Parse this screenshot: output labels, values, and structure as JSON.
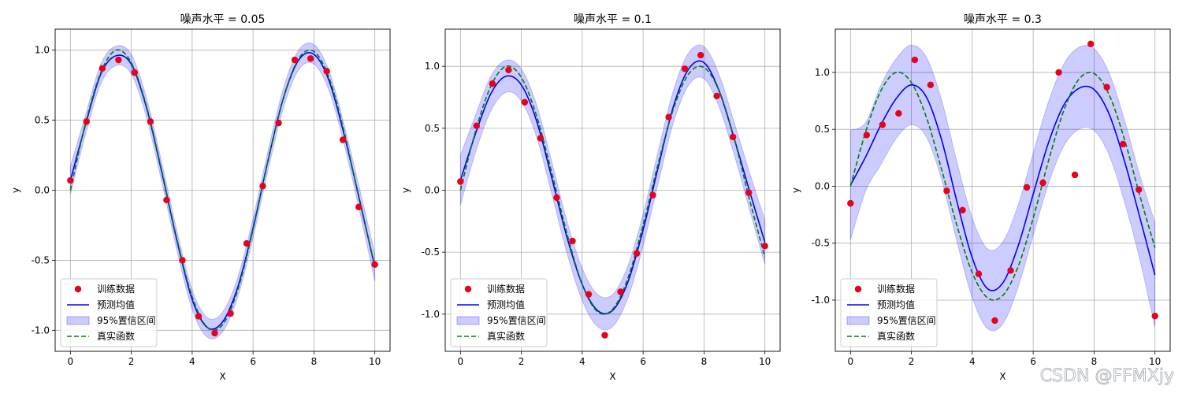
{
  "watermark": "CSDN @FFMXjy",
  "chart_data": [
    {
      "type": "line",
      "title": "噪声水平 = 0.05",
      "xlabel": "X",
      "ylabel": "y",
      "xlim": [
        -0.5,
        10.5
      ],
      "ylim": [
        -1.15,
        1.15
      ],
      "xticks": [
        0,
        2,
        4,
        6,
        8,
        10
      ],
      "xtick_labels": [
        "0",
        "2",
        "4",
        "6",
        "8",
        "10"
      ],
      "yticks": [
        -1.0,
        -0.5,
        0.0,
        0.5,
        1.0
      ],
      "ytick_labels": [
        "-1.0",
        "-0.5",
        "0.0",
        "0.5",
        "1.0"
      ],
      "grid": true,
      "legend_position": "lower-left",
      "legend": [
        "训练数据",
        "预测均值",
        "95%置信区间",
        "真实函数"
      ],
      "colors": {
        "points": "#e8001c",
        "mean": "#0000ff",
        "band": "#0000ff",
        "truth": "#008000"
      },
      "series": [
        {
          "name": "训练数据",
          "kind": "points",
          "x": [
            0.0,
            0.53,
            1.05,
            1.58,
            2.11,
            2.63,
            3.16,
            3.68,
            4.21,
            4.74,
            5.26,
            5.79,
            6.32,
            6.84,
            7.37,
            7.89,
            8.42,
            8.95,
            9.47,
            10.0
          ],
          "y": [
            0.07,
            0.49,
            0.87,
            0.93,
            0.84,
            0.49,
            -0.07,
            -0.5,
            -0.9,
            -1.02,
            -0.88,
            -0.38,
            0.03,
            0.48,
            0.93,
            0.94,
            0.85,
            0.36,
            -0.12,
            -0.53
          ]
        },
        {
          "name": "预测均值",
          "kind": "line",
          "x": [
            0.0,
            0.5,
            1.0,
            1.5,
            2.0,
            2.5,
            3.0,
            3.5,
            4.0,
            4.5,
            5.0,
            5.5,
            6.0,
            6.5,
            7.0,
            7.5,
            8.0,
            8.5,
            9.0,
            9.5,
            10.0
          ],
          "y": [
            0.07,
            0.47,
            0.83,
            0.96,
            0.9,
            0.59,
            0.13,
            -0.36,
            -0.78,
            -0.98,
            -0.94,
            -0.69,
            -0.27,
            0.22,
            0.66,
            0.93,
            0.97,
            0.78,
            0.39,
            -0.07,
            -0.55
          ]
        },
        {
          "name": "95%置信区间",
          "kind": "band",
          "x": [
            0.0,
            0.5,
            1.0,
            1.5,
            2.0,
            2.5,
            3.0,
            3.5,
            4.0,
            4.5,
            5.0,
            5.5,
            6.0,
            6.5,
            7.0,
            7.5,
            8.0,
            8.5,
            9.0,
            9.5,
            10.0
          ],
          "lower": [
            -0.03,
            0.4,
            0.76,
            0.89,
            0.83,
            0.52,
            0.06,
            -0.43,
            -0.85,
            -1.05,
            -1.01,
            -0.76,
            -0.34,
            0.15,
            0.59,
            0.86,
            0.9,
            0.71,
            0.32,
            -0.15,
            -0.65
          ],
          "upper": [
            0.17,
            0.54,
            0.9,
            1.03,
            0.97,
            0.66,
            0.2,
            -0.29,
            -0.71,
            -0.91,
            -0.87,
            -0.62,
            -0.2,
            0.29,
            0.73,
            1.0,
            1.04,
            0.85,
            0.46,
            0.01,
            -0.45
          ]
        },
        {
          "name": "真实函数",
          "kind": "dashed",
          "x": [
            0.0,
            0.5,
            1.0,
            1.5,
            2.0,
            2.5,
            3.0,
            3.5,
            4.0,
            4.5,
            5.0,
            5.5,
            6.0,
            6.5,
            7.0,
            7.5,
            8.0,
            8.5,
            9.0,
            9.5,
            10.0
          ],
          "y": [
            0.0,
            0.48,
            0.84,
            1.0,
            0.91,
            0.6,
            0.14,
            -0.35,
            -0.76,
            -0.98,
            -0.96,
            -0.71,
            -0.28,
            0.22,
            0.66,
            0.94,
            0.99,
            0.8,
            0.41,
            -0.08,
            -0.54
          ]
        }
      ]
    },
    {
      "type": "line",
      "title": "噪声水平 = 0.1",
      "xlabel": "X",
      "ylabel": "y",
      "xlim": [
        -0.5,
        10.5
      ],
      "ylim": [
        -1.3,
        1.3
      ],
      "xticks": [
        0,
        2,
        4,
        6,
        8,
        10
      ],
      "xtick_labels": [
        "0",
        "2",
        "4",
        "6",
        "8",
        "10"
      ],
      "yticks": [
        -1.0,
        -0.5,
        0.0,
        0.5,
        1.0
      ],
      "ytick_labels": [
        "-1.0",
        "-0.5",
        "0.0",
        "0.5",
        "1.0"
      ],
      "grid": true,
      "legend_position": "lower-left",
      "legend": [
        "训练数据",
        "预测均值",
        "95%置信区间",
        "真实函数"
      ],
      "colors": {
        "points": "#e8001c",
        "mean": "#0000ff",
        "band": "#0000ff",
        "truth": "#008000"
      },
      "series": [
        {
          "name": "训练数据",
          "kind": "points",
          "x": [
            0.0,
            0.53,
            1.05,
            1.58,
            2.11,
            2.63,
            3.16,
            3.68,
            4.21,
            4.74,
            5.26,
            5.79,
            6.32,
            6.84,
            7.37,
            7.89,
            8.42,
            8.95,
            9.47,
            10.0
          ],
          "y": [
            0.07,
            0.52,
            0.86,
            0.97,
            0.71,
            0.42,
            -0.06,
            -0.41,
            -0.84,
            -1.17,
            -0.82,
            -0.51,
            -0.04,
            0.59,
            0.98,
            1.09,
            0.76,
            0.43,
            -0.02,
            -0.45
          ]
        },
        {
          "name": "预测均值",
          "kind": "line",
          "x": [
            0.0,
            0.5,
            1.0,
            1.5,
            2.0,
            2.5,
            3.0,
            3.5,
            4.0,
            4.5,
            5.0,
            5.5,
            6.0,
            6.5,
            7.0,
            7.5,
            8.0,
            8.5,
            9.0,
            9.5,
            10.0
          ],
          "y": [
            0.08,
            0.46,
            0.78,
            0.92,
            0.85,
            0.56,
            0.1,
            -0.38,
            -0.76,
            -0.97,
            -0.97,
            -0.74,
            -0.32,
            0.19,
            0.68,
            0.98,
            1.03,
            0.8,
            0.41,
            -0.01,
            -0.42
          ]
        },
        {
          "name": "95%置信区间",
          "kind": "band",
          "x": [
            0.0,
            0.5,
            1.0,
            1.5,
            2.0,
            2.5,
            3.0,
            3.5,
            4.0,
            4.5,
            5.0,
            5.5,
            6.0,
            6.5,
            7.0,
            7.5,
            8.0,
            8.5,
            9.0,
            9.5,
            10.0
          ],
          "lower": [
            -0.12,
            0.31,
            0.64,
            0.79,
            0.72,
            0.43,
            -0.03,
            -0.51,
            -0.89,
            -1.1,
            -1.1,
            -0.87,
            -0.45,
            0.06,
            0.55,
            0.85,
            0.9,
            0.67,
            0.28,
            -0.16,
            -0.6
          ],
          "upper": [
            0.28,
            0.61,
            0.92,
            1.05,
            0.98,
            0.69,
            0.23,
            -0.25,
            -0.63,
            -0.84,
            -0.84,
            -0.61,
            -0.19,
            0.32,
            0.81,
            1.11,
            1.16,
            0.93,
            0.54,
            0.14,
            -0.24
          ]
        },
        {
          "name": "真实函数",
          "kind": "dashed",
          "x": [
            0.0,
            0.5,
            1.0,
            1.5,
            2.0,
            2.5,
            3.0,
            3.5,
            4.0,
            4.5,
            5.0,
            5.5,
            6.0,
            6.5,
            7.0,
            7.5,
            8.0,
            8.5,
            9.0,
            9.5,
            10.0
          ],
          "y": [
            0.0,
            0.48,
            0.84,
            1.0,
            0.91,
            0.6,
            0.14,
            -0.35,
            -0.76,
            -0.98,
            -0.96,
            -0.71,
            -0.28,
            0.22,
            0.66,
            0.94,
            0.99,
            0.8,
            0.41,
            -0.08,
            -0.54
          ]
        }
      ]
    },
    {
      "type": "line",
      "title": "噪声水平 = 0.3",
      "xlabel": "X",
      "ylabel": "y",
      "xlim": [
        -0.5,
        10.5
      ],
      "ylim": [
        -1.45,
        1.38
      ],
      "xticks": [
        0,
        2,
        4,
        6,
        8,
        10
      ],
      "xtick_labels": [
        "0",
        "2",
        "4",
        "6",
        "8",
        "10"
      ],
      "yticks": [
        -1.0,
        -0.5,
        0.0,
        0.5,
        1.0
      ],
      "ytick_labels": [
        "-1.0",
        "-0.5",
        "0.0",
        "0.5",
        "1.0"
      ],
      "grid": true,
      "legend_position": "lower-left",
      "legend": [
        "训练数据",
        "预测均值",
        "95%置信区间",
        "真实函数"
      ],
      "colors": {
        "points": "#e8001c",
        "mean": "#0000ff",
        "band": "#0000ff",
        "truth": "#008000"
      },
      "series": [
        {
          "name": "训练数据",
          "kind": "points",
          "x": [
            0.0,
            0.53,
            1.05,
            1.58,
            2.11,
            2.63,
            3.16,
            3.68,
            4.21,
            4.74,
            5.26,
            5.79,
            6.32,
            6.84,
            7.37,
            7.89,
            8.42,
            8.95,
            9.47,
            10.0
          ],
          "y": [
            -0.15,
            0.45,
            0.54,
            0.64,
            1.11,
            0.89,
            -0.04,
            -0.21,
            -0.77,
            -1.18,
            -0.74,
            -0.01,
            0.03,
            1.0,
            0.1,
            1.25,
            0.87,
            0.37,
            -0.03,
            -1.14
          ]
        },
        {
          "name": "预测均值",
          "kind": "line",
          "x": [
            0.0,
            0.5,
            1.0,
            1.5,
            2.0,
            2.5,
            3.0,
            3.5,
            4.0,
            4.5,
            5.0,
            5.5,
            6.0,
            6.5,
            7.0,
            7.5,
            8.0,
            8.5,
            9.0,
            9.5,
            10.0
          ],
          "y": [
            0.01,
            0.26,
            0.54,
            0.77,
            0.89,
            0.78,
            0.4,
            -0.14,
            -0.63,
            -0.9,
            -0.85,
            -0.53,
            -0.07,
            0.38,
            0.71,
            0.86,
            0.85,
            0.63,
            0.22,
            -0.27,
            -0.78
          ]
        },
        {
          "name": "95%置信区间",
          "kind": "band",
          "x": [
            0.0,
            0.5,
            1.0,
            1.5,
            2.0,
            2.5,
            3.0,
            3.5,
            4.0,
            4.5,
            5.0,
            5.5,
            6.0,
            6.5,
            7.0,
            7.5,
            8.0,
            8.5,
            9.0,
            9.5,
            10.0
          ],
          "lower": [
            -0.47,
            -0.04,
            0.19,
            0.42,
            0.54,
            0.43,
            0.05,
            -0.49,
            -0.98,
            -1.25,
            -1.21,
            -0.89,
            -0.43,
            0.02,
            0.35,
            0.5,
            0.49,
            0.27,
            -0.14,
            -0.64,
            -1.24
          ]
        },
        {
          "name": "真实函数",
          "kind": "dashed",
          "x": [
            0.0,
            0.5,
            1.0,
            1.5,
            2.0,
            2.5,
            3.0,
            3.5,
            4.0,
            4.5,
            5.0,
            5.5,
            6.0,
            6.5,
            7.0,
            7.5,
            8.0,
            8.5,
            9.0,
            9.5,
            10.0
          ],
          "y": [
            0.0,
            0.48,
            0.84,
            1.0,
            0.91,
            0.6,
            0.14,
            -0.35,
            -0.76,
            -0.98,
            -0.96,
            -0.71,
            -0.28,
            0.22,
            0.66,
            0.94,
            0.99,
            0.8,
            0.41,
            -0.08,
            -0.54
          ]
        }
      ]
    }
  ]
}
